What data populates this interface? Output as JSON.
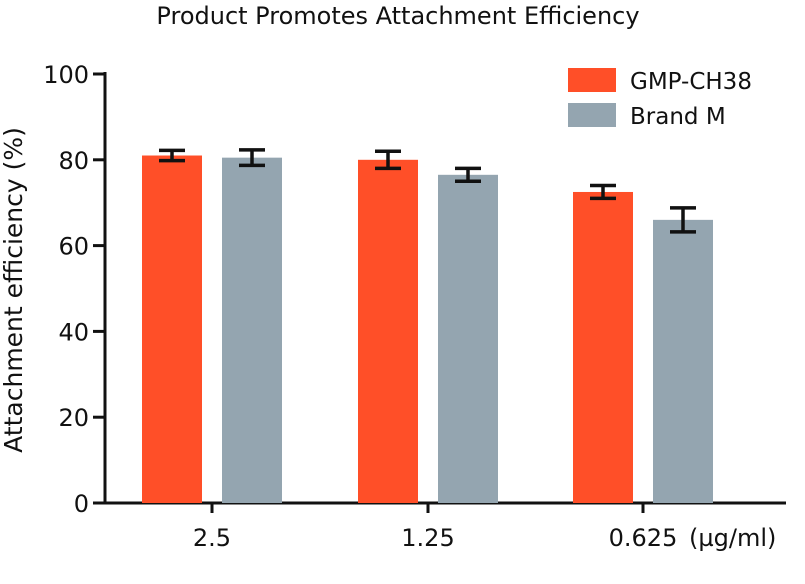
{
  "chart_data": {
    "type": "bar",
    "title": "Product Promotes Attachment Efficiency",
    "xlabel": "",
    "ylabel": "Attachment efficiency (%)",
    "x_unit": "(µg/ml)",
    "categories": [
      "2.5",
      "1.25",
      "0.625"
    ],
    "ylim": [
      0,
      100
    ],
    "yticks": [
      0,
      20,
      40,
      60,
      80,
      100
    ],
    "grid": false,
    "legend_position": "top-right",
    "series": [
      {
        "name": "GMP-CH38",
        "color": "#ff4f28",
        "values": [
          81,
          80,
          72.5
        ],
        "errors": [
          1.2,
          2.0,
          1.5
        ]
      },
      {
        "name": "Brand M",
        "color": "#94a5b0",
        "values": [
          80.5,
          76.5,
          66
        ],
        "errors": [
          1.8,
          1.5,
          2.8
        ]
      }
    ]
  }
}
